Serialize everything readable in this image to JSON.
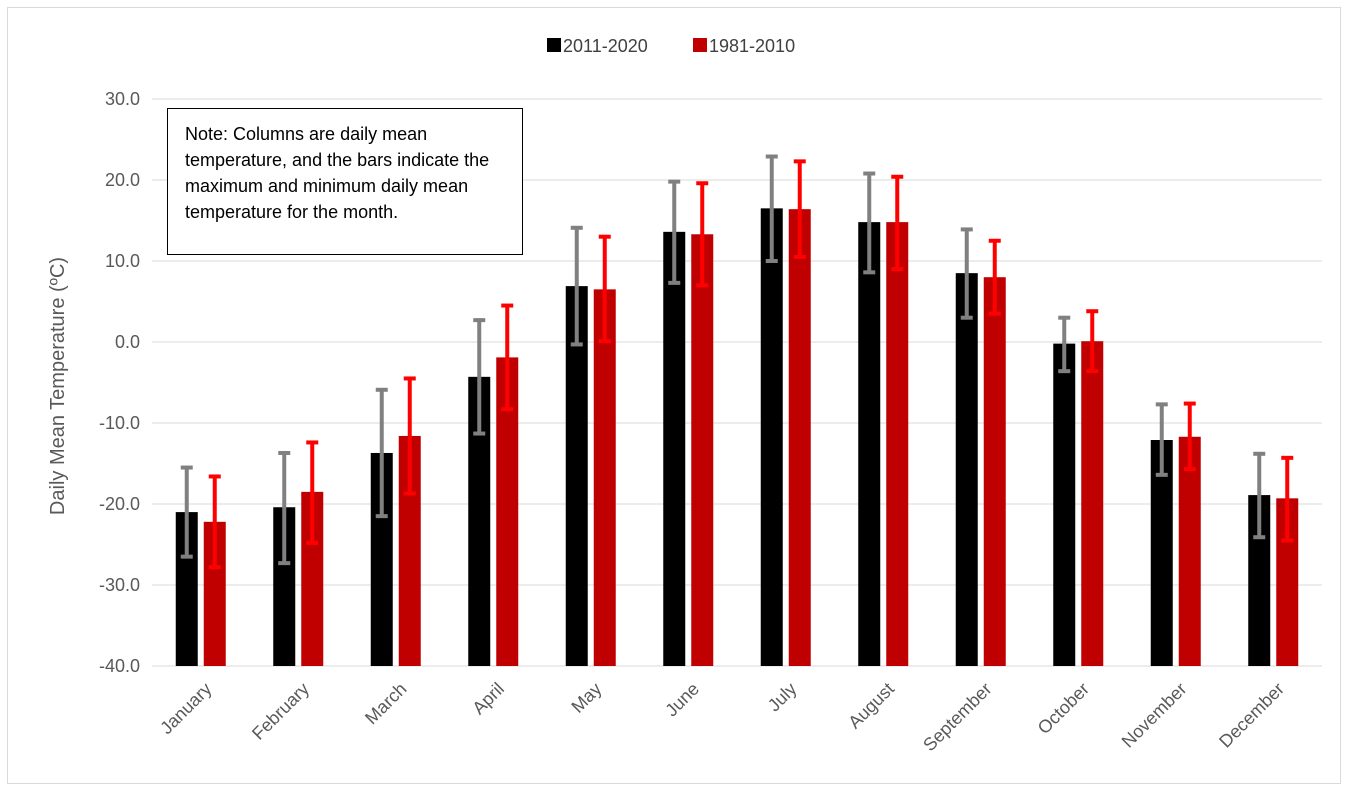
{
  "chart_data": {
    "type": "bar",
    "categories": [
      "January",
      "February",
      "March",
      "April",
      "May",
      "June",
      "July",
      "August",
      "September",
      "October",
      "November",
      "December"
    ],
    "series": [
      {
        "name": "2011-2020",
        "color": "#000000",
        "error_color": "#808080",
        "values": [
          -21.0,
          -20.4,
          -13.7,
          -4.3,
          6.9,
          13.6,
          16.5,
          14.8,
          8.5,
          -0.2,
          -12.1,
          -18.9
        ],
        "max": [
          -15.5,
          -13.7,
          -5.9,
          2.7,
          14.1,
          19.8,
          22.9,
          20.8,
          13.9,
          3.0,
          -7.7,
          -13.8
        ],
        "min": [
          -26.5,
          -27.3,
          -21.5,
          -11.3,
          -0.3,
          7.3,
          10.0,
          8.6,
          3.0,
          -3.6,
          -16.4,
          -24.1
        ]
      },
      {
        "name": "1981-2010",
        "color": "#c00000",
        "error_color": "#ff0000",
        "values": [
          -22.2,
          -18.5,
          -11.6,
          -1.9,
          6.5,
          13.3,
          16.4,
          14.8,
          8.0,
          0.1,
          -11.7,
          -19.3
        ],
        "max": [
          -16.6,
          -12.4,
          -4.5,
          4.5,
          13.0,
          19.6,
          22.3,
          20.4,
          12.5,
          3.8,
          -7.6,
          -14.3
        ],
        "min": [
          -27.8,
          -24.8,
          -18.7,
          -8.3,
          0.1,
          7.0,
          10.5,
          9.0,
          3.5,
          -3.6,
          -15.7,
          -24.5
        ]
      }
    ],
    "ylabel": "Daily Mean Temperature (ºC)",
    "xlabel": "",
    "ylim": [
      -40,
      30
    ],
    "yticks": [
      "-40.0",
      "-30.0",
      "-20.0",
      "-10.0",
      "0.0",
      "10.0",
      "20.0",
      "30.0"
    ],
    "grid": true,
    "legend_position": "top-center",
    "annotation": "Note: Columns are daily mean temperature, and the bars indicate the maximum and minimum daily mean temperature for the month."
  }
}
